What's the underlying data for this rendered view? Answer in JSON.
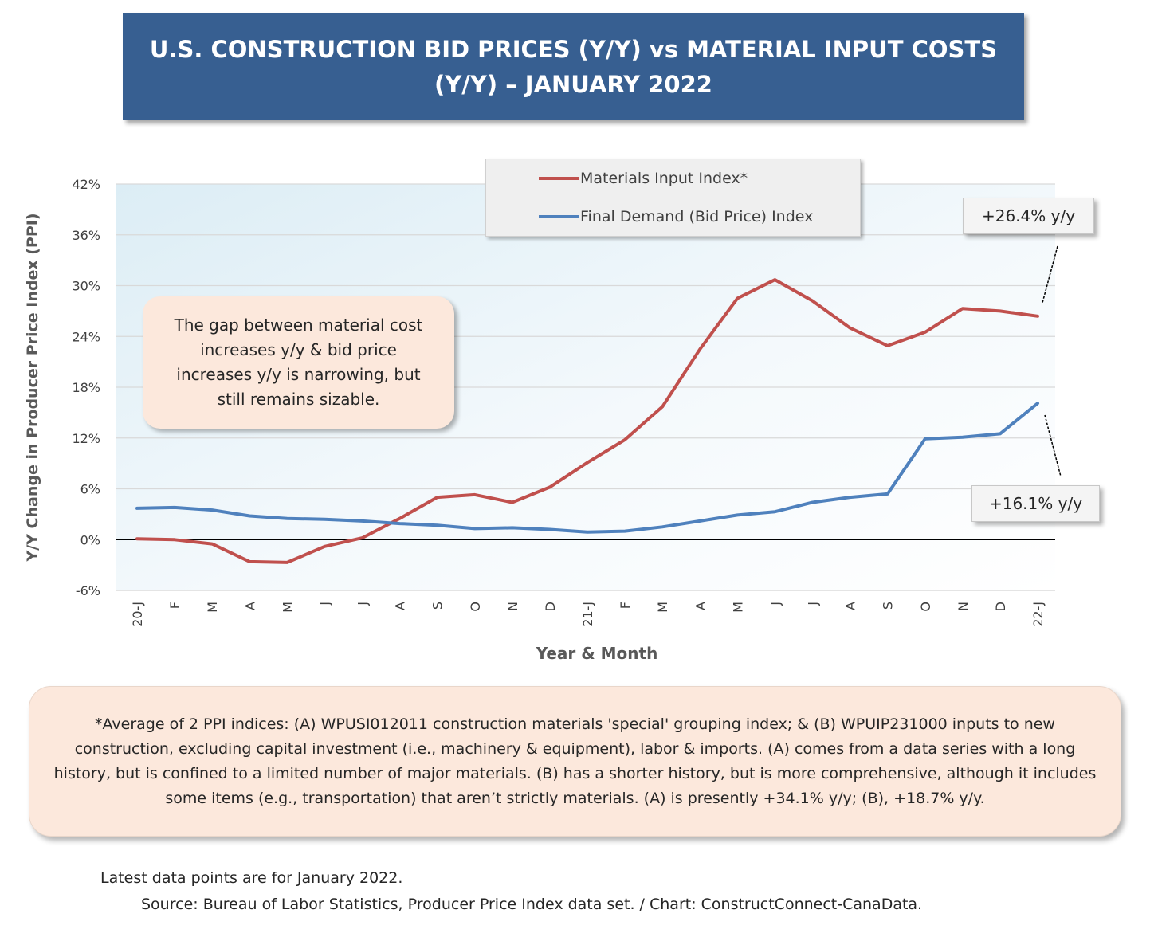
{
  "title": "U.S. CONSTRUCTION BID PRICES (Y/Y) vs MATERIAL INPUT COSTS (Y/Y) – JANUARY 2022",
  "colors": {
    "materials": "#c0504d",
    "final_demand": "#4f81bd",
    "title_bg": "#375f91",
    "note_bg": "#fce8dc"
  },
  "chart_data": {
    "type": "line",
    "title": "U.S. CONSTRUCTION BID PRICES (Y/Y) vs MATERIAL INPUT COSTS (Y/Y) – JANUARY 2022",
    "xlabel": "Year & Month",
    "ylabel": "Y/Y Change in Producer Price Index (PPI)",
    "ylim": [
      -6,
      42
    ],
    "yticks": [
      -6,
      0,
      6,
      12,
      18,
      24,
      30,
      36,
      42
    ],
    "ytick_labels": [
      "-6%",
      "0%",
      "6%",
      "12%",
      "18%",
      "24%",
      "30%",
      "36%",
      "42%"
    ],
    "categories": [
      "20-J",
      "F",
      "M",
      "A",
      "M",
      "J",
      "J",
      "A",
      "S",
      "O",
      "N",
      "D",
      "21-J",
      "F",
      "M",
      "A",
      "M",
      "J",
      "J",
      "A",
      "S",
      "O",
      "N",
      "D",
      "22-J"
    ],
    "series": [
      {
        "name": "Materials Input Index*",
        "values": [
          0.1,
          0.0,
          -0.5,
          -2.6,
          -2.7,
          -0.8,
          0.2,
          2.5,
          5.0,
          5.3,
          4.4,
          6.2,
          9.1,
          11.8,
          15.7,
          22.5,
          28.5,
          30.7,
          28.2,
          25.0,
          22.9,
          24.5,
          27.3,
          27.0,
          26.4
        ]
      },
      {
        "name": "Final Demand (Bid Price) Index",
        "values": [
          3.7,
          3.8,
          3.5,
          2.8,
          2.5,
          2.4,
          2.2,
          1.9,
          1.7,
          1.3,
          1.4,
          1.2,
          0.9,
          1.0,
          1.5,
          2.2,
          2.9,
          3.3,
          4.4,
          5.0,
          5.4,
          11.9,
          12.1,
          12.5,
          16.1
        ]
      }
    ],
    "grid": true,
    "legend": "top-center",
    "annotations": [
      "+26.4% y/y",
      "+16.1% y/y"
    ]
  },
  "note": "The gap between material cost increases y/y & bid price increases y/y is narrowing, but still remains sizable.",
  "footnote": "*Average of 2 PPI indices: (A) WPUSI012011 construction materials 'special' grouping index; & (B) WPUIP231000 inputs to new construction, excluding capital investment (i.e., machinery & equipment), labor & imports. (A) comes from a data series with a long history, but is confined to a limited number of major materials. (B) has a shorter history, but is more comprehensive, although it includes some items (e.g., transportation) that aren’t strictly materials. (A) is presently +34.1% y/y; (B), +18.7% y/y.",
  "latest": "Latest data points are for January 2022.",
  "source": "Source: Bureau of Labor Statistics, Producer Price Index data set. / Chart: ConstructConnect-CanaData."
}
